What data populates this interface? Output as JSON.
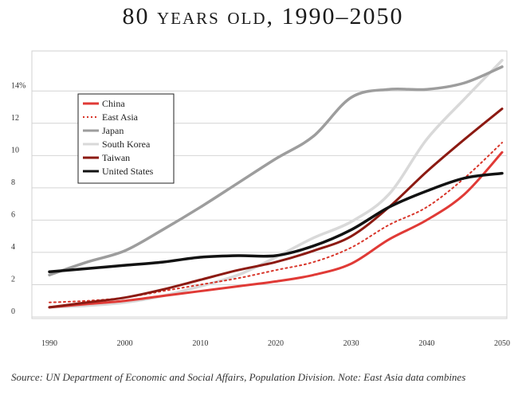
{
  "title": "80 years old, 1990–2050",
  "source": "Source: UN Department of Economic and Social Affairs, Population Division. Note: East Asia data combines",
  "chart_data": {
    "type": "line",
    "title": "80 years old, 1990–2050",
    "xlabel": "",
    "ylabel": "",
    "xlim": [
      1990,
      2050
    ],
    "ylim": [
      0,
      15
    ],
    "x_ticks": [
      1990,
      2000,
      2010,
      2020,
      2030,
      2040,
      2050
    ],
    "x_tick_labels": [
      "1990",
      "2000",
      "2010",
      "2020",
      "2030",
      "2040",
      "2050"
    ],
    "y_ticks": [
      0,
      2,
      4,
      6,
      8,
      10,
      12,
      14
    ],
    "y_tick_labels": [
      "0",
      "2",
      "4",
      "6",
      "8",
      "10",
      "12",
      "14%"
    ],
    "grid": "horizontal",
    "legend_position": "top-left",
    "x": [
      1990,
      1995,
      2000,
      2005,
      2010,
      2015,
      2020,
      2025,
      2030,
      2035,
      2040,
      2045,
      2050
    ],
    "series": [
      {
        "name": "China",
        "color": "#e03a36",
        "style": "solid",
        "width": 3,
        "values": [
          0.6,
          0.8,
          1.0,
          1.3,
          1.6,
          1.9,
          2.2,
          2.6,
          3.3,
          4.8,
          6.0,
          7.6,
          10.2
        ]
      },
      {
        "name": "East Asia",
        "color": "#d8352a",
        "style": "dotted",
        "width": 2,
        "values": [
          0.9,
          1.0,
          1.2,
          1.6,
          2.0,
          2.4,
          2.9,
          3.4,
          4.3,
          5.7,
          6.8,
          8.6,
          10.8
        ]
      },
      {
        "name": "Japan",
        "color": "#9d9d9d",
        "style": "solid",
        "width": 3.5,
        "values": [
          2.6,
          3.4,
          4.1,
          5.4,
          6.8,
          8.3,
          9.8,
          11.2,
          13.6,
          14.1,
          14.1,
          14.5,
          15.5
        ]
      },
      {
        "name": "South Korea",
        "color": "#d9d9d9",
        "style": "solid",
        "width": 3.5,
        "values": [
          0.6,
          0.7,
          0.9,
          1.3,
          1.9,
          2.6,
          3.7,
          4.9,
          5.9,
          7.6,
          11.0,
          13.5,
          15.9
        ]
      },
      {
        "name": "Taiwan",
        "color": "#8c1a12",
        "style": "solid",
        "width": 3,
        "values": [
          0.6,
          0.9,
          1.2,
          1.7,
          2.3,
          2.9,
          3.4,
          4.1,
          5.0,
          6.8,
          9.0,
          11.0,
          12.9
        ]
      },
      {
        "name": "United States",
        "color": "#121212",
        "style": "solid",
        "width": 3.5,
        "values": [
          2.8,
          3.0,
          3.2,
          3.4,
          3.7,
          3.8,
          3.8,
          4.4,
          5.4,
          6.8,
          7.8,
          8.6,
          8.9
        ]
      }
    ]
  }
}
